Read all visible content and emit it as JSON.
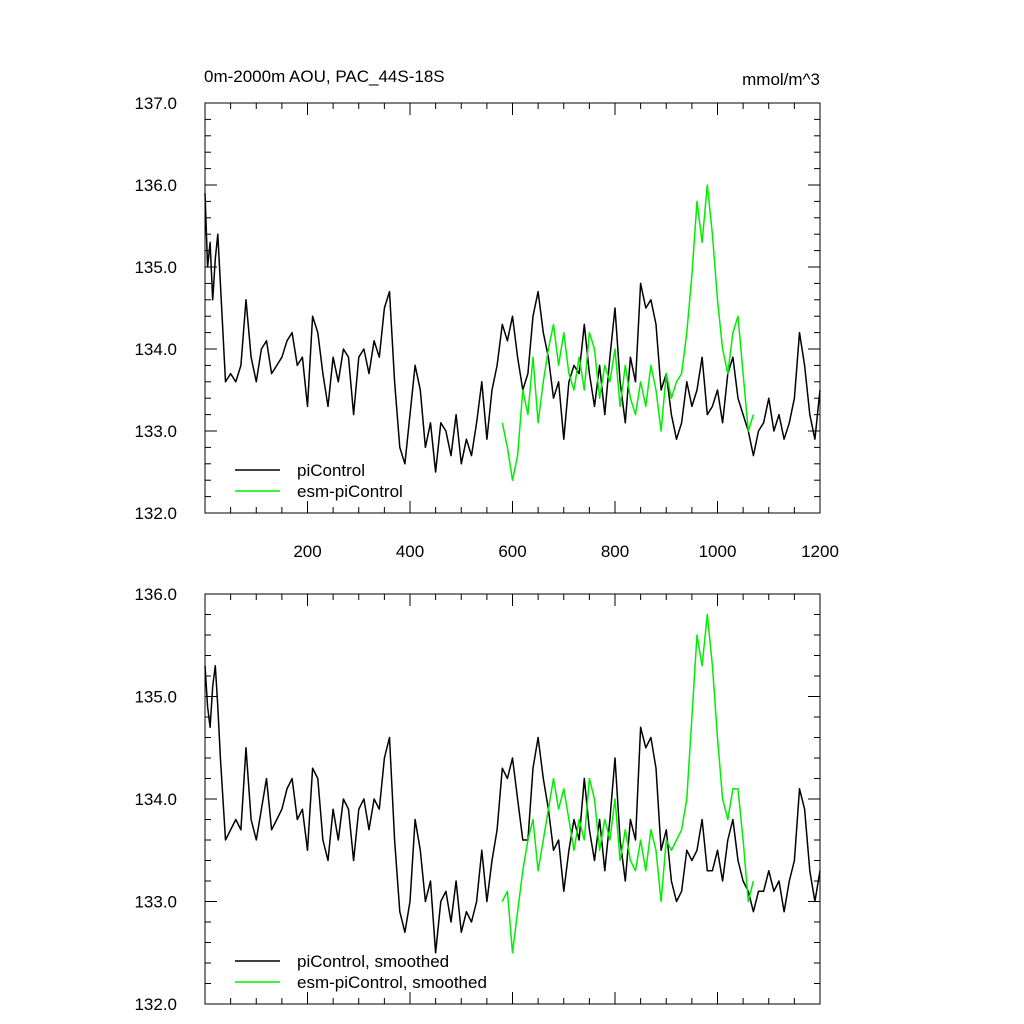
{
  "chart_data": [
    {
      "type": "line",
      "title": "0m-2000m AOU, PAC_44S-18S",
      "units_label": "mmol/m^3",
      "xlim": [
        0,
        1200
      ],
      "ylim": [
        132.0,
        137.0
      ],
      "x_ticks": [
        200,
        400,
        600,
        800,
        1000,
        1200
      ],
      "x_tick_labels": [
        "200",
        "400",
        "600",
        "800",
        "1000",
        "1200"
      ],
      "y_ticks": [
        132.0,
        133.0,
        134.0,
        135.0,
        136.0,
        137.0
      ],
      "y_tick_labels": [
        "132.0",
        "133.0",
        "134.0",
        "135.0",
        "136.0",
        "137.0"
      ],
      "legend_placement": "lower-left",
      "series": [
        {
          "name": "piControl",
          "color": "#000000",
          "x": [
            0,
            5,
            10,
            15,
            20,
            25,
            30,
            40,
            50,
            60,
            70,
            80,
            90,
            100,
            110,
            120,
            130,
            140,
            150,
            160,
            170,
            180,
            190,
            200,
            210,
            220,
            230,
            240,
            250,
            260,
            270,
            280,
            290,
            300,
            310,
            320,
            330,
            340,
            350,
            360,
            370,
            380,
            390,
            400,
            410,
            420,
            430,
            440,
            450,
            460,
            470,
            480,
            490,
            500,
            510,
            520,
            530,
            540,
            550,
            560,
            570,
            580,
            590,
            600,
            610,
            620,
            630,
            640,
            650,
            660,
            670,
            680,
            690,
            700,
            710,
            720,
            730,
            740,
            750,
            760,
            770,
            780,
            790,
            800,
            810,
            820,
            830,
            840,
            850,
            860,
            870,
            880,
            890,
            900,
            910,
            920,
            930,
            940,
            950,
            960,
            970,
            980,
            990,
            1000,
            1010,
            1020,
            1030,
            1040,
            1050,
            1060,
            1070,
            1080,
            1090,
            1100,
            1110,
            1120,
            1130,
            1140,
            1150,
            1160,
            1170,
            1180,
            1190,
            1200
          ],
          "values": [
            135.9,
            135.0,
            135.3,
            134.6,
            135.1,
            135.4,
            134.8,
            133.6,
            133.7,
            133.6,
            133.8,
            134.6,
            133.9,
            133.6,
            134.0,
            134.1,
            133.7,
            133.8,
            133.9,
            134.1,
            134.2,
            133.8,
            133.9,
            133.3,
            134.4,
            134.2,
            133.7,
            133.3,
            133.9,
            133.6,
            134.0,
            133.9,
            133.2,
            133.9,
            134.0,
            133.7,
            134.1,
            133.9,
            134.5,
            134.7,
            133.6,
            132.8,
            132.6,
            133.2,
            133.8,
            133.5,
            132.8,
            133.1,
            132.5,
            133.1,
            133.0,
            132.7,
            133.2,
            132.6,
            132.9,
            132.7,
            133.1,
            133.6,
            132.9,
            133.5,
            133.8,
            134.3,
            134.1,
            134.4,
            133.9,
            133.5,
            133.7,
            134.4,
            134.7,
            134.2,
            133.9,
            133.4,
            133.6,
            132.9,
            133.6,
            133.8,
            133.7,
            134.3,
            133.7,
            133.3,
            133.8,
            133.2,
            133.9,
            134.5,
            133.6,
            133.1,
            133.9,
            133.6,
            134.8,
            134.5,
            134.6,
            134.3,
            133.5,
            133.7,
            133.2,
            132.9,
            133.1,
            133.6,
            133.3,
            133.5,
            133.9,
            133.2,
            133.3,
            133.5,
            133.1,
            133.7,
            133.9,
            133.4,
            133.2,
            133.0,
            132.7,
            133.0,
            133.1,
            133.4,
            133.0,
            133.2,
            132.9,
            133.1,
            133.4,
            134.2,
            133.8,
            133.2,
            132.9,
            133.5
          ]
        },
        {
          "name": "esm-piControl",
          "color": "#00ee00",
          "x": [
            580,
            590,
            600,
            610,
            620,
            630,
            640,
            650,
            660,
            670,
            680,
            690,
            700,
            710,
            720,
            730,
            740,
            750,
            760,
            770,
            780,
            790,
            800,
            810,
            820,
            830,
            840,
            850,
            860,
            870,
            880,
            890,
            900,
            910,
            920,
            930,
            940,
            950,
            960,
            970,
            980,
            990,
            1000,
            1010,
            1020,
            1030,
            1040,
            1050,
            1060,
            1070
          ],
          "values": [
            133.1,
            132.8,
            132.4,
            132.7,
            133.5,
            133.2,
            133.9,
            133.1,
            133.6,
            134.0,
            134.3,
            133.8,
            134.2,
            133.7,
            133.5,
            133.9,
            133.5,
            134.2,
            134.0,
            133.4,
            133.8,
            133.6,
            134.0,
            133.3,
            133.8,
            133.4,
            133.2,
            133.6,
            133.3,
            133.8,
            133.5,
            133.0,
            133.7,
            133.4,
            133.6,
            133.7,
            134.2,
            134.9,
            135.8,
            135.3,
            136.0,
            135.4,
            134.6,
            134.0,
            133.7,
            134.2,
            134.4,
            133.7,
            133.0,
            133.2
          ]
        }
      ]
    },
    {
      "type": "line",
      "xlim": [
        0,
        1200
      ],
      "ylim": [
        132.0,
        136.0
      ],
      "x_ticks": [
        200,
        400,
        600,
        800,
        1000,
        1200
      ],
      "y_ticks": [
        132.0,
        133.0,
        134.0,
        135.0,
        136.0
      ],
      "y_tick_labels": [
        "132.0",
        "133.0",
        "134.0",
        "135.0",
        "136.0"
      ],
      "legend_placement": "lower-left",
      "series": [
        {
          "name": "piControl, smoothed",
          "color": "#000000",
          "x": [
            0,
            5,
            10,
            15,
            20,
            25,
            30,
            40,
            50,
            60,
            70,
            80,
            90,
            100,
            110,
            120,
            130,
            140,
            150,
            160,
            170,
            180,
            190,
            200,
            210,
            220,
            230,
            240,
            250,
            260,
            270,
            280,
            290,
            300,
            310,
            320,
            330,
            340,
            350,
            360,
            370,
            380,
            390,
            400,
            410,
            420,
            430,
            440,
            450,
            460,
            470,
            480,
            490,
            500,
            510,
            520,
            530,
            540,
            550,
            560,
            570,
            580,
            590,
            600,
            610,
            620,
            630,
            640,
            650,
            660,
            670,
            680,
            690,
            700,
            710,
            720,
            730,
            740,
            750,
            760,
            770,
            780,
            790,
            800,
            810,
            820,
            830,
            840,
            850,
            860,
            870,
            880,
            890,
            900,
            910,
            920,
            930,
            940,
            950,
            960,
            970,
            980,
            990,
            1000,
            1010,
            1020,
            1030,
            1040,
            1050,
            1060,
            1070,
            1080,
            1090,
            1100,
            1110,
            1120,
            1130,
            1140,
            1150,
            1160,
            1170,
            1180,
            1190,
            1200
          ],
          "values": [
            135.3,
            134.9,
            134.7,
            135.1,
            135.3,
            134.9,
            134.4,
            133.6,
            133.7,
            133.8,
            133.7,
            134.5,
            133.8,
            133.6,
            133.9,
            134.2,
            133.7,
            133.8,
            133.9,
            134.1,
            134.2,
            133.8,
            133.9,
            133.5,
            134.3,
            134.2,
            133.6,
            133.4,
            133.9,
            133.6,
            134.0,
            133.9,
            133.4,
            133.9,
            134.0,
            133.7,
            134.0,
            133.9,
            134.4,
            134.6,
            133.6,
            132.9,
            132.7,
            133.0,
            133.8,
            133.5,
            133.0,
            133.2,
            132.5,
            133.0,
            133.1,
            132.8,
            133.2,
            132.7,
            132.9,
            132.8,
            133.0,
            133.5,
            133.0,
            133.4,
            133.7,
            134.3,
            134.2,
            134.4,
            134.0,
            133.6,
            133.6,
            134.3,
            134.6,
            134.2,
            133.9,
            133.5,
            133.6,
            133.1,
            133.5,
            133.8,
            133.6,
            134.2,
            133.7,
            133.4,
            133.8,
            133.3,
            133.8,
            134.4,
            133.6,
            133.2,
            133.8,
            133.6,
            134.7,
            134.5,
            134.6,
            134.3,
            133.5,
            133.7,
            133.2,
            133.0,
            133.1,
            133.5,
            133.4,
            133.5,
            133.8,
            133.3,
            133.3,
            133.5,
            133.2,
            133.6,
            133.8,
            133.4,
            133.2,
            133.1,
            132.9,
            133.1,
            133.1,
            133.3,
            133.1,
            133.2,
            132.9,
            133.2,
            133.4,
            134.1,
            133.9,
            133.3,
            133.0,
            133.3
          ]
        },
        {
          "name": "esm-piControl, smoothed",
          "color": "#00ee00",
          "x": [
            580,
            590,
            600,
            610,
            620,
            630,
            640,
            650,
            660,
            670,
            680,
            690,
            700,
            710,
            720,
            730,
            740,
            750,
            760,
            770,
            780,
            790,
            800,
            810,
            820,
            830,
            840,
            850,
            860,
            870,
            880,
            890,
            900,
            910,
            920,
            930,
            940,
            950,
            960,
            970,
            980,
            990,
            1000,
            1010,
            1020,
            1030,
            1040,
            1050,
            1060,
            1070
          ],
          "values": [
            133.0,
            133.1,
            132.5,
            132.9,
            133.3,
            133.6,
            133.8,
            133.3,
            133.6,
            133.9,
            134.2,
            133.9,
            134.1,
            133.8,
            133.5,
            133.8,
            133.6,
            134.2,
            134.0,
            133.5,
            133.8,
            133.6,
            134.0,
            133.4,
            133.7,
            133.4,
            133.3,
            133.6,
            133.3,
            133.7,
            133.5,
            133.0,
            133.6,
            133.5,
            133.6,
            133.7,
            134.0,
            134.8,
            135.6,
            135.3,
            135.8,
            135.3,
            134.6,
            134.0,
            133.8,
            134.1,
            134.1,
            133.6,
            133.0,
            133.2
          ]
        }
      ]
    }
  ]
}
